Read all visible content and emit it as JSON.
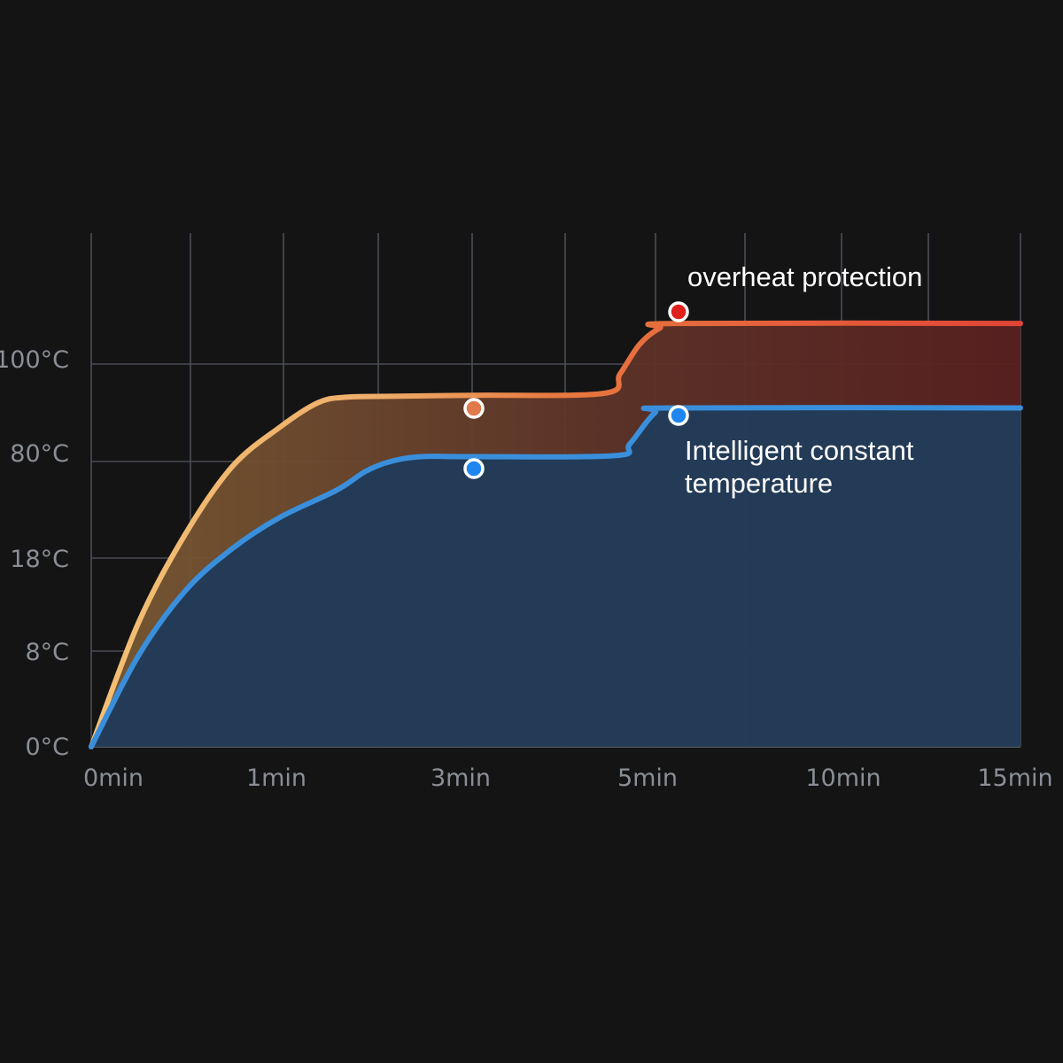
{
  "chart_data": {
    "type": "area",
    "title": "",
    "xlabel": "",
    "ylabel": "",
    "x_ticks": [
      "0min",
      "1min",
      "3min",
      "5min",
      "10min",
      "15min"
    ],
    "y_ticks": [
      "0°C",
      "8°C",
      "18°C",
      "80°C",
      "100°C"
    ],
    "grid": true,
    "legend": "none",
    "series": [
      {
        "key": "upper",
        "color": "#e8793f",
        "start_color": "#f2c074",
        "end_color": "#e04536",
        "points": [
          [
            0,
            0
          ],
          [
            0.25,
            1.3
          ],
          [
            0.5,
            2.25
          ],
          [
            0.75,
            2.95
          ],
          [
            1.0,
            3.35
          ],
          [
            1.2,
            3.6
          ],
          [
            1.35,
            3.66
          ],
          [
            2.0,
            3.67
          ],
          [
            3.0,
            3.68
          ],
          [
            3.7,
            3.7
          ],
          [
            3.85,
            3.9
          ],
          [
            4.05,
            4.3
          ],
          [
            4.25,
            4.55
          ],
          [
            4.5,
            4.62
          ],
          [
            15.0,
            4.62
          ]
        ]
      },
      {
        "key": "lower",
        "color": "#3a8fdc",
        "start_color": "#3a8fdc",
        "end_color": "#3a8fdc",
        "points": [
          [
            0,
            0
          ],
          [
            0.25,
            0.95
          ],
          [
            0.5,
            1.65
          ],
          [
            0.75,
            2.1
          ],
          [
            1.0,
            2.42
          ],
          [
            1.3,
            2.7
          ],
          [
            1.6,
            2.9
          ],
          [
            1.9,
            3.0
          ],
          [
            2.3,
            3.05
          ],
          [
            3.0,
            3.05
          ],
          [
            3.8,
            3.06
          ],
          [
            3.95,
            3.18
          ],
          [
            4.2,
            3.5
          ],
          [
            4.45,
            3.55
          ],
          [
            15.0,
            3.55
          ]
        ]
      }
    ],
    "markers": [
      {
        "series": "upper",
        "x": 3.0,
        "y": 3.68,
        "color": "#e07a4a"
      },
      {
        "series": "upper",
        "x": 4.5,
        "y": 4.62,
        "color": "#e0201c"
      },
      {
        "series": "lower",
        "x": 3.0,
        "y": 3.05,
        "color": "#1f86f0"
      },
      {
        "series": "lower",
        "x": 4.5,
        "y": 3.55,
        "color": "#1f86f0"
      }
    ],
    "annotations": [
      {
        "key": "overheat",
        "lines": [
          "overheat protection"
        ]
      },
      {
        "key": "constant",
        "lines": [
          "Intelligent constant",
          "temperature"
        ]
      }
    ]
  }
}
